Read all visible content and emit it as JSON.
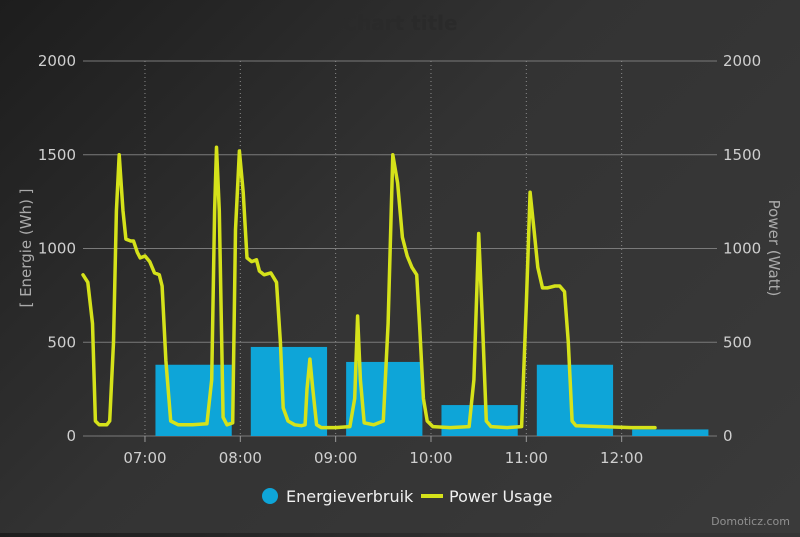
{
  "chart_data": {
    "type": "bar+line",
    "title": "Chart title",
    "credits": "Domoticz.com",
    "y_left": {
      "label": "[ Energie (Wh) ]",
      "range": [
        0,
        2000
      ],
      "ticks": [
        "0",
        "500",
        "1000",
        "1500",
        "2000"
      ]
    },
    "y_right": {
      "label": "Power (Watt)",
      "range": [
        0,
        2000
      ],
      "ticks": [
        "0",
        "500",
        "1000",
        "1500",
        "2000"
      ]
    },
    "x": {
      "range": [
        6.35,
        13.0
      ],
      "ticks": [
        "07:00",
        "08:00",
        "09:00",
        "10:00",
        "11:00",
        "12:00"
      ],
      "tick_hours": [
        7,
        8,
        9,
        10,
        11,
        12
      ]
    },
    "grid": "horizontal solid, vertical dotted",
    "legend": {
      "position": "bottom-center"
    },
    "series": [
      {
        "name": "Energieverbruik",
        "type": "bar",
        "color": "#0ea5d8",
        "axis": "left",
        "points": [
          {
            "hour": 7,
            "value": 380
          },
          {
            "hour": 8,
            "value": 475
          },
          {
            "hour": 9,
            "value": 395
          },
          {
            "hour": 10,
            "value": 165
          },
          {
            "hour": 11,
            "value": 380
          },
          {
            "hour": 12,
            "value": 35
          }
        ]
      },
      {
        "name": "Power Usage",
        "type": "line",
        "color": "#d5e21a",
        "axis": "right",
        "points": [
          [
            6.35,
            860
          ],
          [
            6.4,
            820
          ],
          [
            6.45,
            600
          ],
          [
            6.48,
            80
          ],
          [
            6.52,
            60
          ],
          [
            6.6,
            60
          ],
          [
            6.63,
            80
          ],
          [
            6.67,
            500
          ],
          [
            6.7,
            1200
          ],
          [
            6.73,
            1500
          ],
          [
            6.77,
            1200
          ],
          [
            6.8,
            1050
          ],
          [
            6.85,
            1040
          ],
          [
            6.88,
            1040
          ],
          [
            6.92,
            980
          ],
          [
            6.95,
            950
          ],
          [
            7.0,
            960
          ],
          [
            7.05,
            930
          ],
          [
            7.1,
            870
          ],
          [
            7.15,
            860
          ],
          [
            7.18,
            800
          ],
          [
            7.22,
            400
          ],
          [
            7.27,
            80
          ],
          [
            7.35,
            60
          ],
          [
            7.5,
            60
          ],
          [
            7.65,
            65
          ],
          [
            7.7,
            300
          ],
          [
            7.73,
            1200
          ],
          [
            7.75,
            1540
          ],
          [
            7.78,
            1200
          ],
          [
            7.82,
            100
          ],
          [
            7.86,
            60
          ],
          [
            7.92,
            70
          ],
          [
            7.95,
            1100
          ],
          [
            7.99,
            1520
          ],
          [
            8.03,
            1300
          ],
          [
            8.07,
            950
          ],
          [
            8.12,
            930
          ],
          [
            8.17,
            940
          ],
          [
            8.2,
            880
          ],
          [
            8.25,
            860
          ],
          [
            8.32,
            870
          ],
          [
            8.38,
            820
          ],
          [
            8.42,
            500
          ],
          [
            8.45,
            150
          ],
          [
            8.5,
            80
          ],
          [
            8.57,
            60
          ],
          [
            8.64,
            55
          ],
          [
            8.68,
            60
          ],
          [
            8.7,
            250
          ],
          [
            8.73,
            410
          ],
          [
            8.76,
            250
          ],
          [
            8.8,
            60
          ],
          [
            8.85,
            45
          ],
          [
            9.0,
            45
          ],
          [
            9.15,
            50
          ],
          [
            9.2,
            200
          ],
          [
            9.23,
            640
          ],
          [
            9.26,
            300
          ],
          [
            9.3,
            70
          ],
          [
            9.4,
            60
          ],
          [
            9.5,
            80
          ],
          [
            9.55,
            600
          ],
          [
            9.6,
            1500
          ],
          [
            9.65,
            1350
          ],
          [
            9.7,
            1060
          ],
          [
            9.75,
            960
          ],
          [
            9.8,
            900
          ],
          [
            9.85,
            860
          ],
          [
            9.88,
            600
          ],
          [
            9.92,
            200
          ],
          [
            9.96,
            80
          ],
          [
            10.02,
            50
          ],
          [
            10.2,
            45
          ],
          [
            10.4,
            50
          ],
          [
            10.45,
            300
          ],
          [
            10.5,
            1080
          ],
          [
            10.54,
            600
          ],
          [
            10.58,
            80
          ],
          [
            10.63,
            50
          ],
          [
            10.8,
            45
          ],
          [
            10.95,
            50
          ],
          [
            11.0,
            700
          ],
          [
            11.04,
            1300
          ],
          [
            11.08,
            1100
          ],
          [
            11.12,
            900
          ],
          [
            11.17,
            790
          ],
          [
            11.22,
            790
          ],
          [
            11.3,
            800
          ],
          [
            11.35,
            800
          ],
          [
            11.4,
            770
          ],
          [
            11.44,
            500
          ],
          [
            11.48,
            80
          ],
          [
            11.52,
            55
          ],
          [
            11.8,
            50
          ],
          [
            12.1,
            45
          ],
          [
            12.35,
            45
          ]
        ]
      }
    ]
  }
}
